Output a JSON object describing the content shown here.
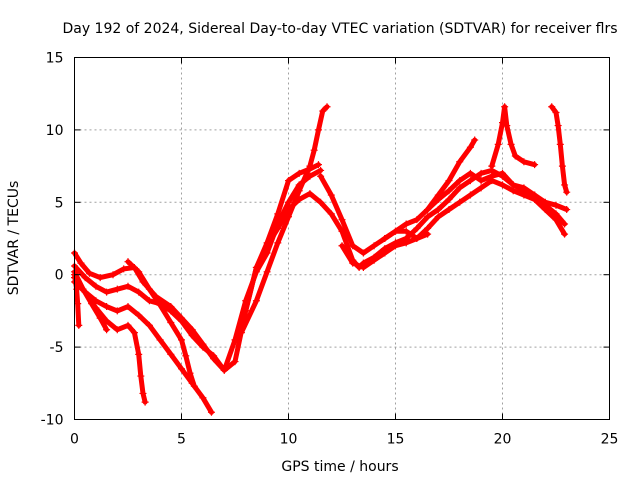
{
  "chart_data": {
    "type": "scatter",
    "title": "Day 192 of 2024, Sidereal Day-to-day VTEC variation (SDTVAR) for receiver flrs",
    "xlabel": "GPS time / hours",
    "ylabel": "SDTVAR / TECUs",
    "xlim": [
      0,
      25
    ],
    "ylim": [
      -10,
      15
    ],
    "xticks": [
      0,
      5,
      10,
      15,
      20,
      25
    ],
    "yticks": [
      -10,
      -5,
      0,
      5,
      10,
      15
    ],
    "grid": true,
    "marker": "+",
    "color": "#ff0000",
    "series": [
      {
        "name": "arc-1",
        "points": [
          [
            0,
            1.5
          ],
          [
            0.3,
            0.8
          ],
          [
            0.7,
            0.1
          ],
          [
            1.2,
            -0.2
          ],
          [
            1.8,
            0
          ],
          [
            2.3,
            0.4
          ],
          [
            2.8,
            0.5
          ],
          [
            3.2,
            -0.5
          ],
          [
            3.8,
            -1.5
          ],
          [
            4.5,
            -2.2
          ],
          [
            5,
            -3
          ],
          [
            5.5,
            -3.8
          ],
          [
            6,
            -4.8
          ],
          [
            6.5,
            -5.8
          ],
          [
            7,
            -6.6
          ],
          [
            7.5,
            -6
          ],
          [
            8,
            -2.5
          ],
          [
            8.5,
            0.5
          ],
          [
            9,
            2.2
          ],
          [
            9.5,
            4.2
          ],
          [
            10,
            6.5
          ],
          [
            10.5,
            7
          ],
          [
            11,
            7.3
          ],
          [
            11.4,
            7.6
          ]
        ]
      },
      {
        "name": "arc-2",
        "points": [
          [
            0,
            0.6
          ],
          [
            0.5,
            -0.2
          ],
          [
            1,
            -0.8
          ],
          [
            1.5,
            -1.2
          ],
          [
            2,
            -1
          ],
          [
            2.5,
            -0.8
          ],
          [
            3,
            -1.2
          ],
          [
            3.5,
            -1.8
          ],
          [
            4,
            -2
          ],
          [
            4.5,
            -2.5
          ],
          [
            5,
            -3.2
          ],
          [
            5.5,
            -4.2
          ],
          [
            6,
            -5
          ],
          [
            6.5,
            -5.6
          ],
          [
            7,
            -6.6
          ],
          [
            7.5,
            -4.5
          ],
          [
            8,
            -1.8
          ],
          [
            8.5,
            0.2
          ],
          [
            9,
            1.5
          ],
          [
            9.5,
            3.5
          ],
          [
            10,
            5
          ],
          [
            10.5,
            6.2
          ],
          [
            11,
            6.8
          ],
          [
            11.5,
            7.2
          ]
        ]
      },
      {
        "name": "arc-3",
        "points": [
          [
            0,
            -0.5
          ],
          [
            0.5,
            -1.2
          ],
          [
            1,
            -1.8
          ],
          [
            1.5,
            -2.2
          ],
          [
            2,
            -2.5
          ],
          [
            2.5,
            -2.2
          ],
          [
            3,
            -2.8
          ],
          [
            3.5,
            -3.5
          ],
          [
            4,
            -4.5
          ],
          [
            4.5,
            -5.5
          ],
          [
            5,
            -6.5
          ],
          [
            5.5,
            -7.5
          ],
          [
            6,
            -8.5
          ],
          [
            6.4,
            -9.5
          ]
        ]
      },
      {
        "name": "arc-4",
        "points": [
          [
            0,
            0.2
          ],
          [
            0.4,
            -1
          ],
          [
            0.8,
            -2
          ],
          [
            1.2,
            -3
          ],
          [
            1.5,
            -3.8
          ]
        ]
      },
      {
        "name": "arc-5",
        "points": [
          [
            0,
            -0.2
          ],
          [
            0.5,
            -1.2
          ],
          [
            1,
            -2.3
          ],
          [
            1.5,
            -3.2
          ],
          [
            2,
            -3.8
          ],
          [
            2.5,
            -3.5
          ],
          [
            2.8,
            -4
          ],
          [
            3,
            -5.5
          ],
          [
            3.1,
            -7
          ],
          [
            3.2,
            -8.2
          ],
          [
            3.3,
            -8.8
          ]
        ]
      },
      {
        "name": "arc-6",
        "points": [
          [
            0,
            0
          ],
          [
            0.1,
            -1
          ],
          [
            0.15,
            -2
          ],
          [
            0.2,
            -3.5
          ]
        ]
      },
      {
        "name": "arc-7",
        "points": [
          [
            2.5,
            0.9
          ],
          [
            3,
            0.2
          ],
          [
            3.5,
            -1
          ],
          [
            4,
            -2.1
          ],
          [
            4.5,
            -3.3
          ],
          [
            5,
            -4.5
          ],
          [
            5.2,
            -5.6
          ],
          [
            5.4,
            -6.8
          ],
          [
            5.6,
            -7.7
          ]
        ]
      },
      {
        "name": "arc-8",
        "points": [
          [
            7.8,
            -4
          ],
          [
            8.5,
            -1.8
          ],
          [
            9,
            0.2
          ],
          [
            9.5,
            2.2
          ],
          [
            10,
            4
          ],
          [
            10.5,
            5.8
          ],
          [
            11,
            7.5
          ],
          [
            11.2,
            8.6
          ],
          [
            11.4,
            10
          ],
          [
            11.6,
            11.3
          ],
          [
            11.8,
            11.6
          ]
        ]
      },
      {
        "name": "arc-9",
        "points": [
          [
            8,
            -2.5
          ],
          [
            8.5,
            0.5
          ],
          [
            9,
            2
          ],
          [
            9.5,
            3.2
          ],
          [
            10,
            4.5
          ],
          [
            10.5,
            5.2
          ],
          [
            11,
            5.6
          ],
          [
            11.5,
            5
          ],
          [
            12,
            4.2
          ],
          [
            12.5,
            3
          ],
          [
            13,
            1
          ],
          [
            13.3,
            0.5
          ],
          [
            13.5,
            0.8
          ],
          [
            14,
            1.2
          ],
          [
            14.5,
            1.8
          ],
          [
            15,
            2.2
          ],
          [
            15.5,
            2.5
          ],
          [
            16,
            3.2
          ],
          [
            16.5,
            4
          ],
          [
            17,
            4.5
          ],
          [
            17.5,
            5.2
          ],
          [
            18,
            6
          ],
          [
            18.5,
            6.5
          ],
          [
            19,
            7
          ],
          [
            19.5,
            7.2
          ],
          [
            20,
            6.8
          ],
          [
            20.5,
            6.2
          ],
          [
            21,
            5.8
          ],
          [
            21.5,
            5.5
          ],
          [
            22,
            5
          ],
          [
            22.5,
            4.8
          ],
          [
            23,
            4.5
          ]
        ]
      },
      {
        "name": "arc-10",
        "points": [
          [
            11.5,
            6.8
          ],
          [
            12,
            5.5
          ],
          [
            12.5,
            3.8
          ],
          [
            13,
            2
          ],
          [
            13.5,
            1.5
          ],
          [
            14,
            2
          ],
          [
            14.5,
            2.5
          ],
          [
            15,
            3
          ],
          [
            15.5,
            3.5
          ],
          [
            16,
            3.8
          ],
          [
            16.5,
            4.5
          ],
          [
            17,
            5.2
          ],
          [
            17.5,
            5.8
          ],
          [
            18,
            6.5
          ],
          [
            18.5,
            7
          ],
          [
            19,
            6.5
          ],
          [
            19.5,
            6.8
          ],
          [
            20,
            7
          ],
          [
            20.5,
            6.2
          ],
          [
            21,
            6
          ],
          [
            21.5,
            5.5
          ],
          [
            22,
            4.8
          ],
          [
            22.5,
            4.2
          ],
          [
            22.9,
            3.5
          ]
        ]
      },
      {
        "name": "arc-11",
        "points": [
          [
            12.5,
            2
          ],
          [
            13,
            0.8
          ],
          [
            13.5,
            0.5
          ],
          [
            14,
            1
          ],
          [
            14.5,
            1.5
          ],
          [
            15,
            2
          ],
          [
            15.5,
            2.2
          ],
          [
            16,
            2.5
          ],
          [
            16.5,
            3.2
          ],
          [
            17,
            4
          ],
          [
            17.5,
            4.5
          ],
          [
            18,
            5
          ],
          [
            18.5,
            5.5
          ],
          [
            19,
            6
          ],
          [
            19.5,
            6.5
          ],
          [
            20,
            6.2
          ],
          [
            20.5,
            5.8
          ],
          [
            21,
            5.5
          ],
          [
            21.5,
            5.2
          ],
          [
            22,
            4.5
          ],
          [
            22.5,
            3.8
          ],
          [
            22.9,
            2.8
          ]
        ]
      },
      {
        "name": "arc-12",
        "points": [
          [
            14.5,
            2.5
          ],
          [
            15,
            3
          ],
          [
            15.5,
            3
          ],
          [
            16,
            2.5
          ],
          [
            16.5,
            2.8
          ]
        ]
      },
      {
        "name": "arc-13",
        "points": [
          [
            16.5,
            4.5
          ],
          [
            17,
            5.5
          ],
          [
            17.5,
            6.5
          ],
          [
            18,
            7.8
          ],
          [
            18.5,
            8.8
          ],
          [
            18.7,
            9.3
          ]
        ]
      },
      {
        "name": "arc-14",
        "points": [
          [
            19.5,
            7.5
          ],
          [
            19.8,
            9
          ],
          [
            20,
            10.5
          ],
          [
            20.1,
            11.6
          ],
          [
            20.2,
            10.3
          ],
          [
            20.4,
            9
          ],
          [
            20.6,
            8.2
          ],
          [
            21,
            7.8
          ],
          [
            21.5,
            7.6
          ]
        ]
      },
      {
        "name": "arc-15",
        "points": [
          [
            22.3,
            11.6
          ],
          [
            22.5,
            11.2
          ],
          [
            22.6,
            10.3
          ],
          [
            22.7,
            9
          ],
          [
            22.8,
            7.5
          ],
          [
            22.9,
            6.2
          ],
          [
            23,
            5.7
          ]
        ]
      }
    ]
  }
}
